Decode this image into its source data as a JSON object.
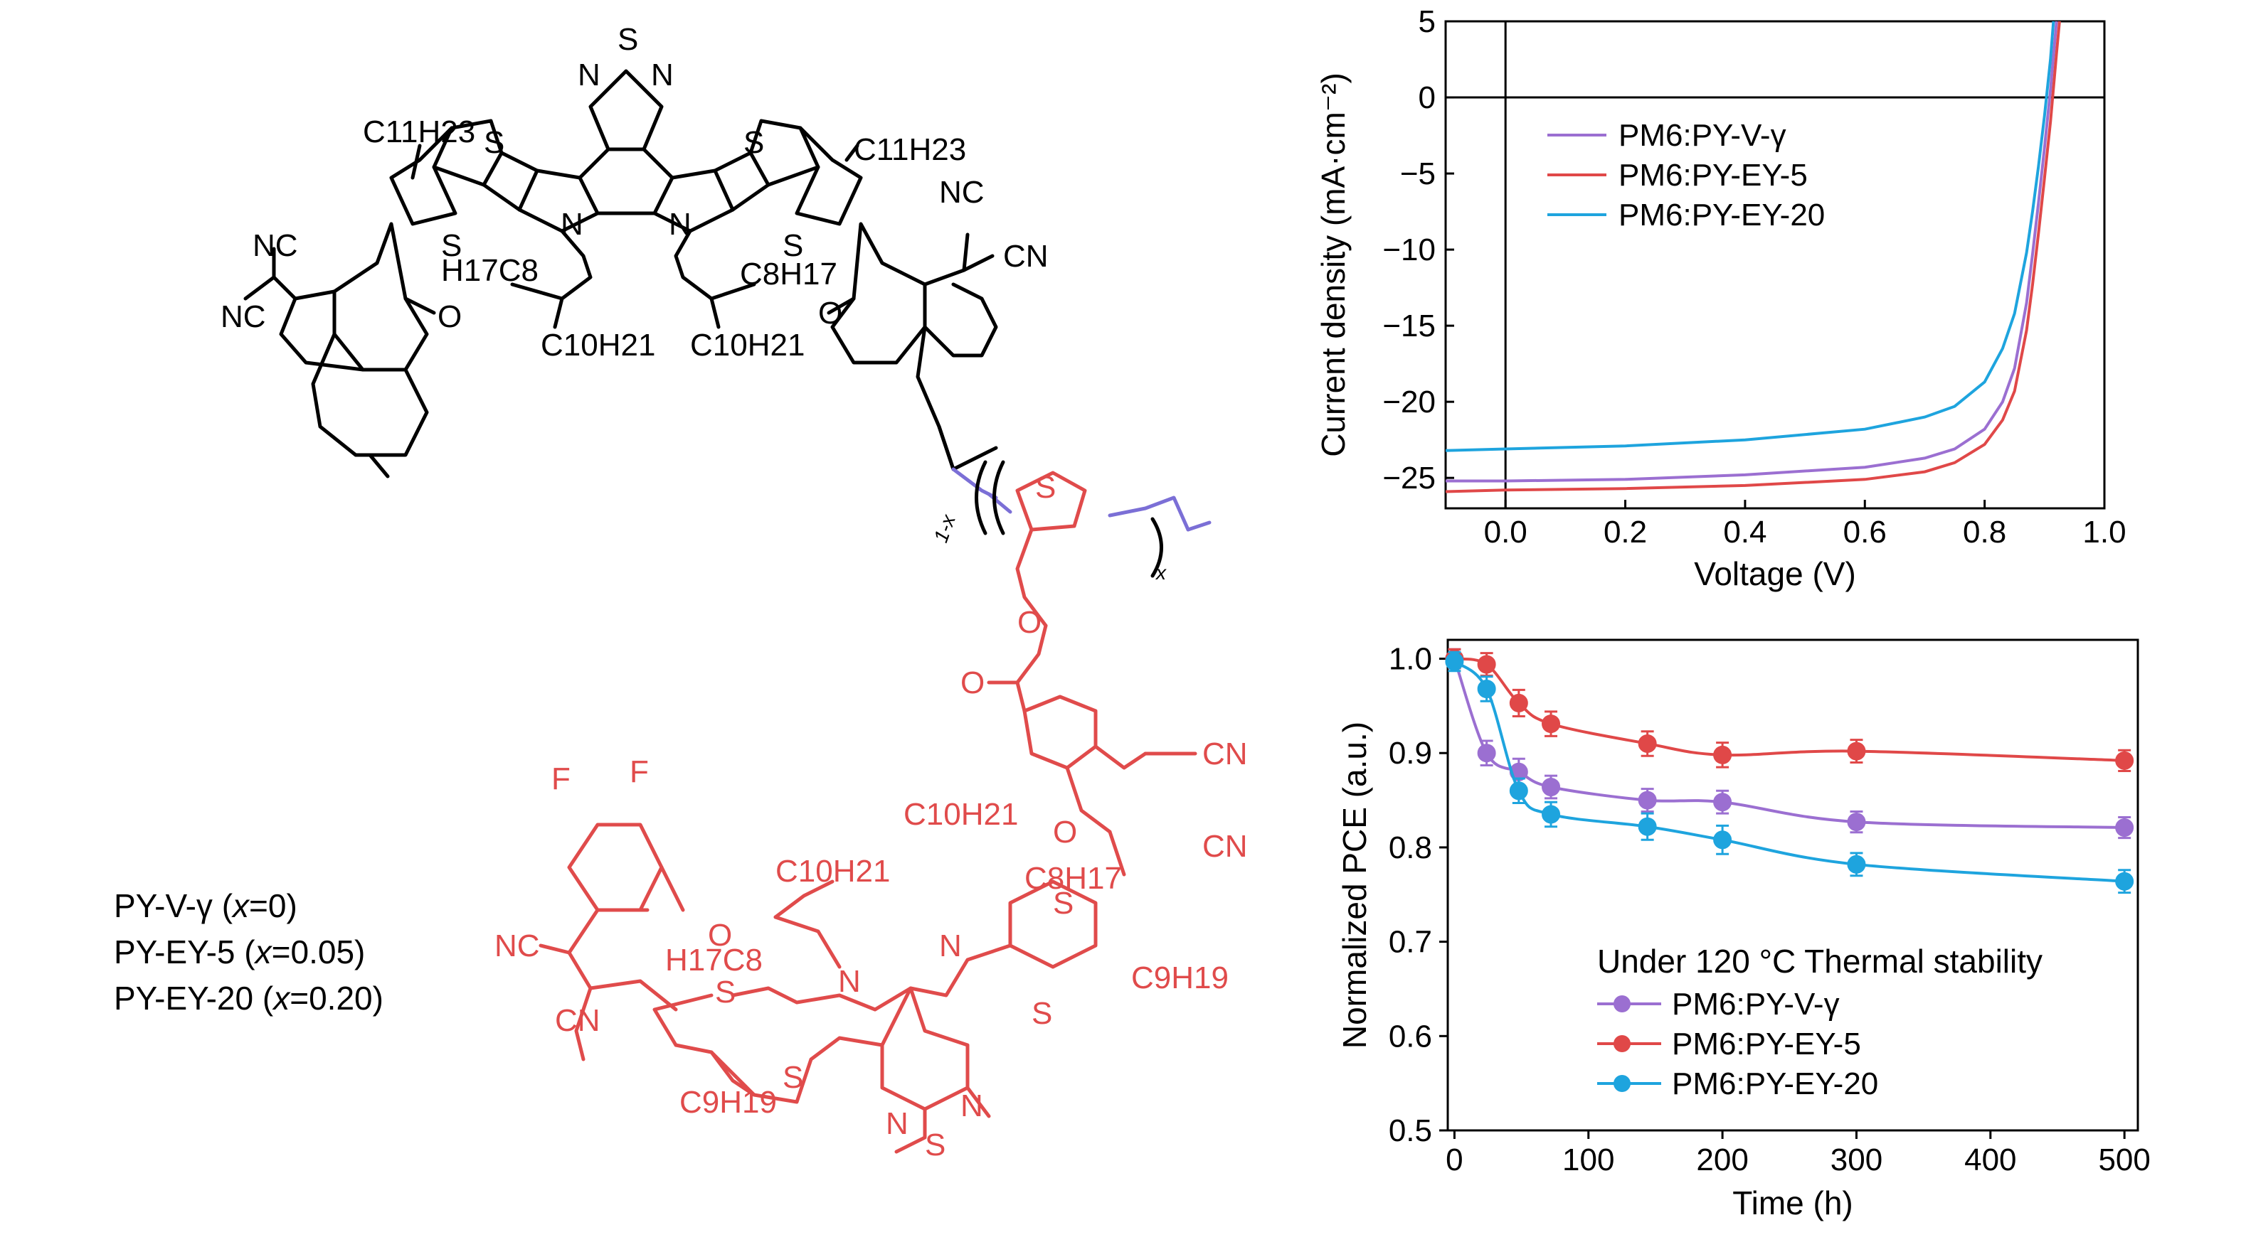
{
  "structure": {
    "variants": [
      {
        "name": "PY-V-γ",
        "x_value": "0"
      },
      {
        "name": "PY-EY-5",
        "x_value": "0.05"
      },
      {
        "name": "PY-EY-20",
        "x_value": "0.20"
      }
    ],
    "atoms": {
      "S": "S",
      "N": "N",
      "O": "O",
      "F": "F",
      "NC": "NC",
      "CN": "CN",
      "C11H23": "C11H23",
      "C10H21": "C10H21",
      "H17C8": "H17C8",
      "C8H17": "C8H17",
      "C9H19": "C9H19",
      "x": "x",
      "one_minus_x": "1-x"
    },
    "colors": {
      "host": "#000000",
      "linker": "#7b6fd6",
      "guest": "#e04b4b"
    }
  },
  "chart_data": [
    {
      "type": "line",
      "xlabel": "Voltage (V)",
      "ylabel": "Current density (mA·cm⁻²)",
      "xlim": [
        -0.1,
        1.0
      ],
      "ylim": [
        -27,
        5
      ],
      "xticks": [
        "0.0",
        "0.2",
        "0.4",
        "0.6",
        "0.8",
        "1.0"
      ],
      "yticks": [
        "5",
        "0",
        "−5",
        "−10",
        "−15",
        "−20",
        "−25"
      ],
      "legend_position": "top-left",
      "series": [
        {
          "name": "PM6:PY-V-γ",
          "color": "#9b6fd1",
          "x": [
            -0.1,
            0.0,
            0.2,
            0.4,
            0.6,
            0.7,
            0.75,
            0.8,
            0.83,
            0.85,
            0.87,
            0.88,
            0.89,
            0.9,
            0.91,
            0.92
          ],
          "y": [
            -25.2,
            -25.2,
            -25.1,
            -24.8,
            -24.3,
            -23.7,
            -23.1,
            -21.8,
            -20.0,
            -17.8,
            -13.5,
            -10.3,
            -6.9,
            -3.3,
            0.5,
            5.0
          ]
        },
        {
          "name": "PM6:PY-EY-5",
          "color": "#e04848",
          "x": [
            -0.1,
            0.0,
            0.2,
            0.4,
            0.6,
            0.7,
            0.75,
            0.8,
            0.83,
            0.85,
            0.87,
            0.88,
            0.89,
            0.9,
            0.91,
            0.92,
            0.925
          ],
          "y": [
            -25.9,
            -25.8,
            -25.7,
            -25.5,
            -25.1,
            -24.6,
            -24.0,
            -22.8,
            -21.2,
            -19.3,
            -15.3,
            -12.3,
            -8.9,
            -5.3,
            -1.6,
            2.9,
            5.0
          ]
        },
        {
          "name": "PM6:PY-EY-20",
          "color": "#1ea4de",
          "x": [
            -0.1,
            0.0,
            0.2,
            0.4,
            0.6,
            0.7,
            0.75,
            0.8,
            0.83,
            0.85,
            0.87,
            0.88,
            0.89,
            0.9,
            0.91,
            0.915
          ],
          "y": [
            -23.2,
            -23.1,
            -22.9,
            -22.5,
            -21.8,
            -21.0,
            -20.3,
            -18.7,
            -16.5,
            -14.2,
            -10.2,
            -7.5,
            -4.5,
            -1.2,
            2.5,
            5.0
          ]
        }
      ]
    },
    {
      "type": "line",
      "xlabel": "Time (h)",
      "ylabel": "Normalized PCE (a.u.)",
      "xlim": [
        -5,
        510
      ],
      "ylim": [
        0.5,
        1.02
      ],
      "xticks": [
        "0",
        "100",
        "200",
        "300",
        "400",
        "500"
      ],
      "yticks": [
        "1.0",
        "0.9",
        "0.8",
        "0.7",
        "0.6",
        "0.5"
      ],
      "legend_title": "Under 120 °C Thermal stability",
      "legend_position": "bottom-right",
      "series": [
        {
          "name": "PM6:PY-V-γ",
          "color": "#9b6fd1",
          "x": [
            0,
            24,
            48,
            72,
            144,
            200,
            300,
            500
          ],
          "y": [
            1.0,
            0.9,
            0.88,
            0.864,
            0.85,
            0.848,
            0.827,
            0.821
          ],
          "err": [
            0.01,
            0.013,
            0.014,
            0.012,
            0.012,
            0.012,
            0.011,
            0.011
          ]
        },
        {
          "name": "PM6:PY-EY-5",
          "color": "#e04848",
          "x": [
            0,
            24,
            48,
            72,
            144,
            200,
            300,
            500
          ],
          "y": [
            1.0,
            0.994,
            0.953,
            0.931,
            0.91,
            0.898,
            0.902,
            0.892
          ],
          "err": [
            0.01,
            0.012,
            0.014,
            0.013,
            0.013,
            0.013,
            0.012,
            0.011
          ]
        },
        {
          "name": "PM6:PY-EY-20",
          "color": "#1ea4de",
          "x": [
            0,
            24,
            48,
            72,
            144,
            200,
            300,
            500
          ],
          "y": [
            0.997,
            0.968,
            0.86,
            0.835,
            0.822,
            0.808,
            0.782,
            0.764
          ],
          "err": [
            0.01,
            0.013,
            0.013,
            0.013,
            0.014,
            0.015,
            0.012,
            0.012
          ]
        }
      ]
    }
  ]
}
